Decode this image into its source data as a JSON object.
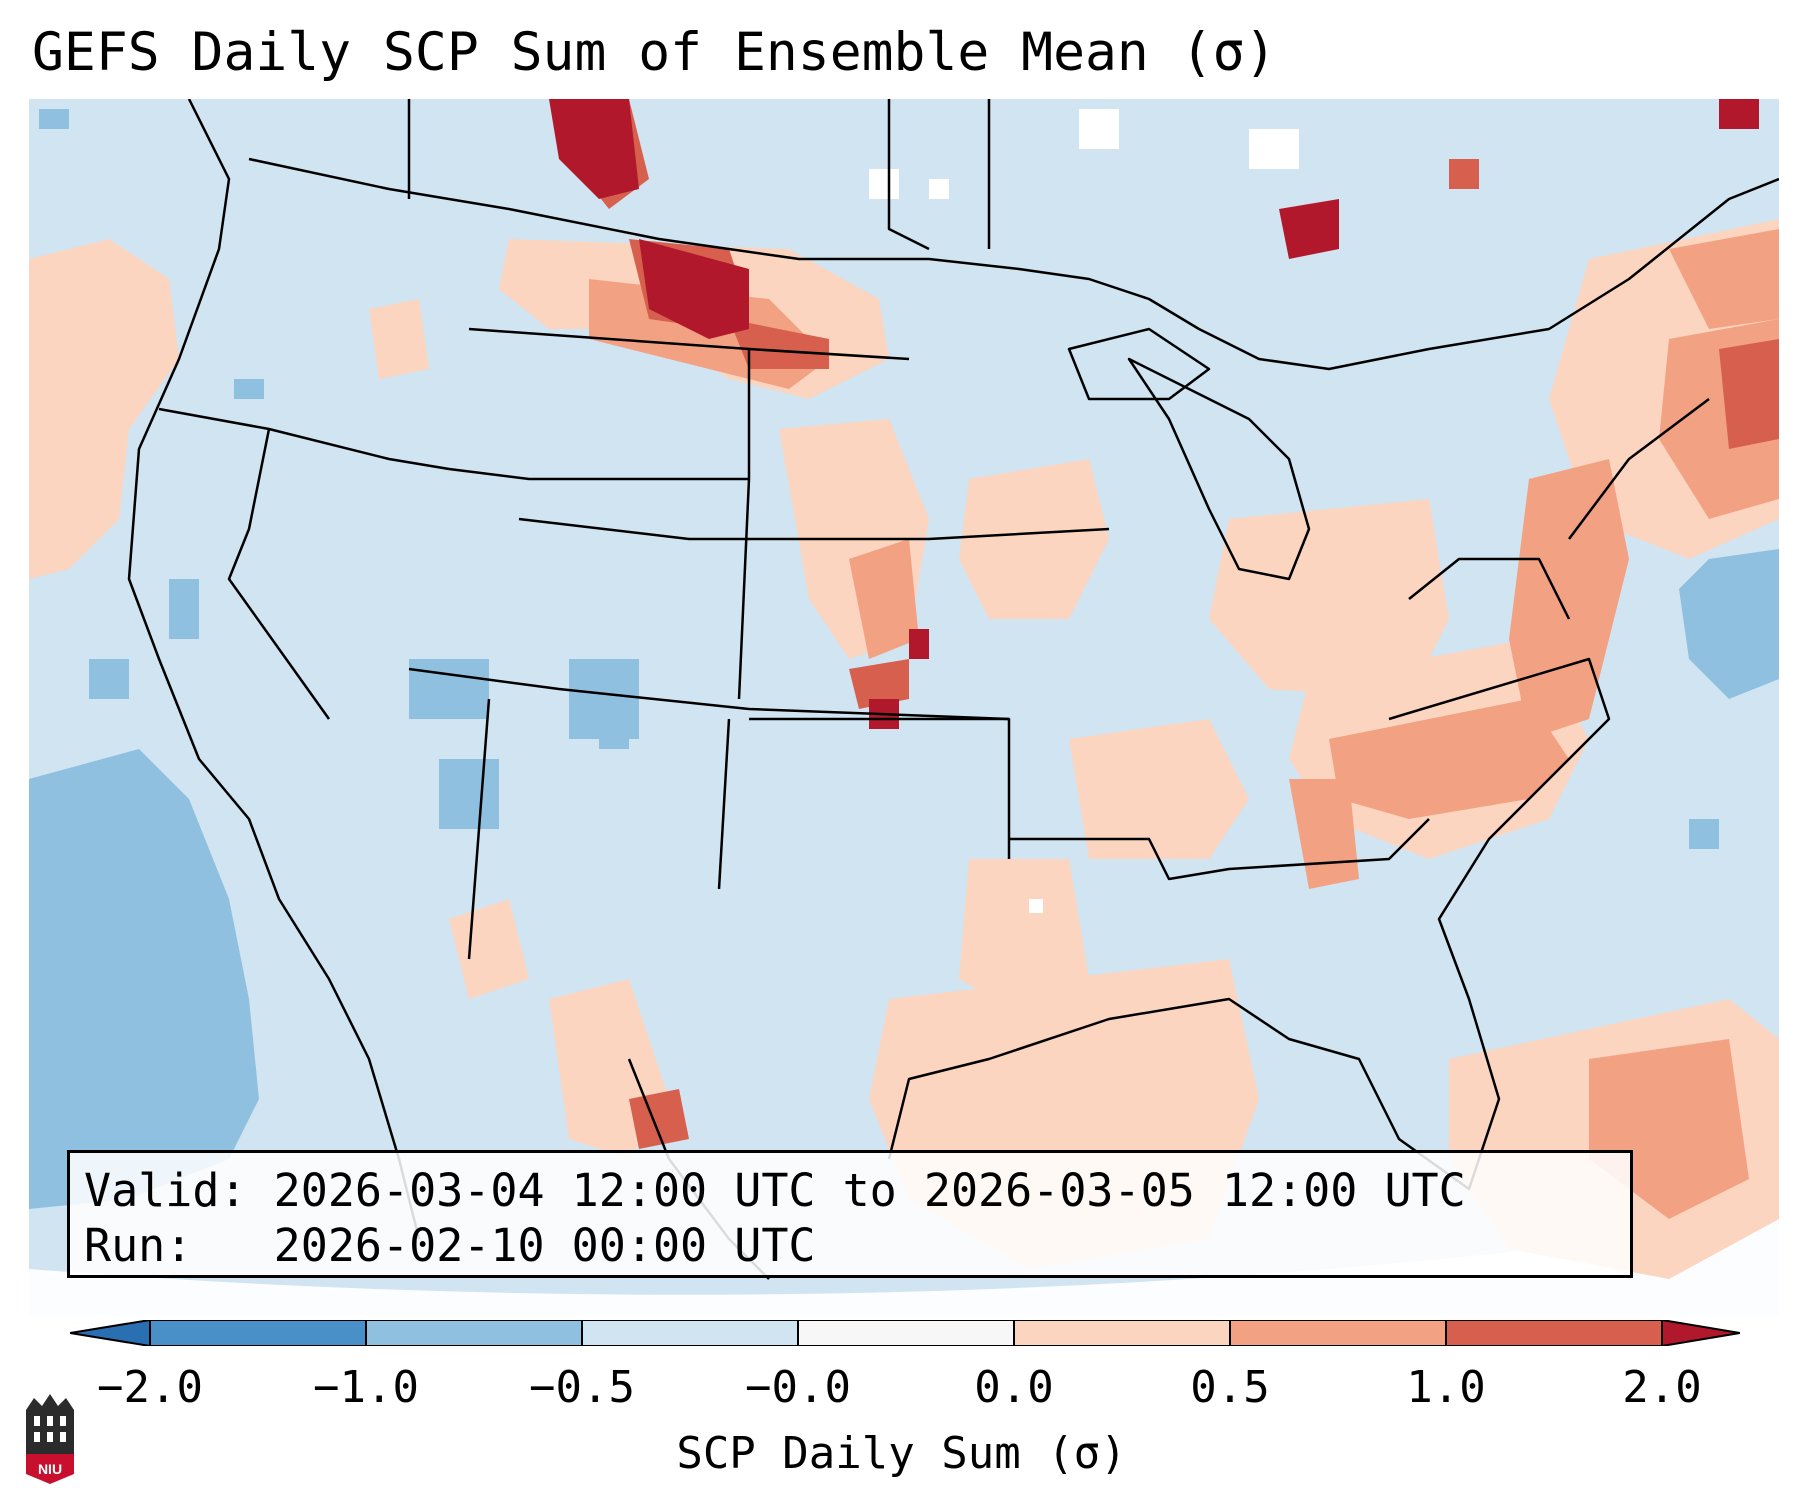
{
  "title": "GEFS Daily SCP Sum of Ensemble Mean (σ)",
  "info": {
    "valid_label": "Valid:",
    "valid_value": "2026-03-04 12:00 UTC to 2026-03-05 12:00 UTC",
    "run_label": "Run:",
    "run_value": "2026-02-10 00:00 UTC"
  },
  "colorbar": {
    "title": "SCP Daily Sum (σ)",
    "ticks": [
      "−2.0",
      "−1.0",
      "−0.5",
      "−0.0",
      "0.0",
      "0.5",
      "1.0",
      "2.0"
    ],
    "bins": [
      {
        "range": "<-2.0",
        "color": "#2b6fb3"
      },
      {
        "range": "-2.0 to -1.0",
        "color": "#4a90c8"
      },
      {
        "range": "-1.0 to -0.5",
        "color": "#8fc0e0"
      },
      {
        "range": "-0.5 to -0.0",
        "color": "#d1e4f1"
      },
      {
        "range": "-0.0 to 0.0",
        "color": "#f7f7f7"
      },
      {
        "range": "0.0 to 0.5",
        "color": "#fbd5c0"
      },
      {
        "range": "0.5 to 1.0",
        "color": "#f2a283"
      },
      {
        "range": "1.0 to 2.0",
        "color": "#d6604d"
      },
      {
        "range": ">2.0",
        "color": "#b2182b"
      }
    ]
  },
  "map": {
    "background_color": "#d1e4f1",
    "region": "Continental United States",
    "features": [
      "positive anomaly over northern plains (ND/MT)",
      "positive anomaly along southeast coast",
      "positive anomaly over Gulf of Mexico"
    ]
  },
  "logo": {
    "text": "NIU",
    "accent": "#c8102e"
  }
}
